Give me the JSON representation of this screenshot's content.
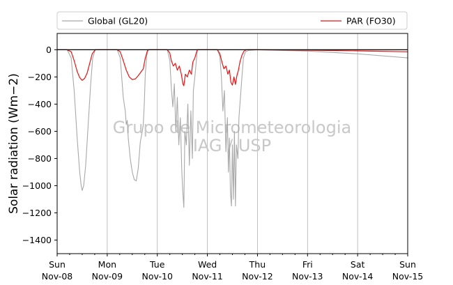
{
  "chart_data": {
    "type": "line",
    "xlabel": "",
    "ylabel": "Solar radiation ($Wm−2$)",
    "ylabel_display": "Solar radiation (Wm−2)",
    "ylim": [
      -1500,
      120
    ],
    "y_ticks": [
      0,
      -200,
      -400,
      -600,
      -800,
      -1000,
      -1200,
      -1400
    ],
    "x_range_days": [
      0,
      7
    ],
    "x_ticks": [
      {
        "day": 0,
        "dow": "Sun",
        "date": "Nov-08"
      },
      {
        "day": 1,
        "dow": "Mon",
        "date": "Nov-09"
      },
      {
        "day": 2,
        "dow": "Tue",
        "date": "Nov-10"
      },
      {
        "day": 3,
        "dow": "Wed",
        "date": "Nov-11"
      },
      {
        "day": 4,
        "dow": "Thu",
        "date": "Nov-12"
      },
      {
        "day": 5,
        "dow": "Fri",
        "date": "Nov-13"
      },
      {
        "day": 6,
        "dow": "Sat",
        "date": "Nov-14"
      },
      {
        "day": 7,
        "dow": "Sun",
        "date": "Nov-15"
      }
    ],
    "grid": "vertical",
    "legend_position": "top, above plot",
    "watermark": [
      "Grupo de Micrometeorologia",
      "IAG / USP"
    ],
    "series": [
      {
        "name": "Global (GL20)",
        "color": "#a8a8a8",
        "points": [
          [
            0.0,
            0
          ],
          [
            0.2,
            0
          ],
          [
            0.28,
            -60
          ],
          [
            0.34,
            -300
          ],
          [
            0.4,
            -650
          ],
          [
            0.45,
            -900
          ],
          [
            0.48,
            -1000
          ],
          [
            0.5,
            -1035
          ],
          [
            0.53,
            -1000
          ],
          [
            0.57,
            -850
          ],
          [
            0.62,
            -550
          ],
          [
            0.67,
            -250
          ],
          [
            0.71,
            -60
          ],
          [
            0.76,
            0
          ],
          [
            1.2,
            0
          ],
          [
            1.26,
            -60
          ],
          [
            1.32,
            -350
          ],
          [
            1.36,
            -450
          ],
          [
            1.38,
            -550
          ],
          [
            1.4,
            -520
          ],
          [
            1.42,
            -650
          ],
          [
            1.46,
            -800
          ],
          [
            1.5,
            -900
          ],
          [
            1.54,
            -955
          ],
          [
            1.58,
            -965
          ],
          [
            1.62,
            -870
          ],
          [
            1.66,
            -680
          ],
          [
            1.7,
            -600
          ],
          [
            1.72,
            -550
          ],
          [
            1.74,
            -400
          ],
          [
            1.76,
            -180
          ],
          [
            1.79,
            -40
          ],
          [
            1.82,
            0
          ],
          [
            2.2,
            0
          ],
          [
            2.25,
            -80
          ],
          [
            2.28,
            -280
          ],
          [
            2.31,
            -420
          ],
          [
            2.34,
            -250
          ],
          [
            2.37,
            -600
          ],
          [
            2.4,
            -350
          ],
          [
            2.43,
            -700
          ],
          [
            2.46,
            -500
          ],
          [
            2.49,
            -900
          ],
          [
            2.51,
            -1050
          ],
          [
            2.53,
            -1160
          ],
          [
            2.55,
            -600
          ],
          [
            2.58,
            -700
          ],
          [
            2.61,
            -400
          ],
          [
            2.64,
            -850
          ],
          [
            2.67,
            -450
          ],
          [
            2.7,
            -800
          ],
          [
            2.72,
            -300
          ],
          [
            2.75,
            -200
          ],
          [
            2.78,
            -80
          ],
          [
            2.8,
            0
          ],
          [
            3.2,
            0
          ],
          [
            3.25,
            -50
          ],
          [
            3.28,
            -200
          ],
          [
            3.31,
            -450
          ],
          [
            3.34,
            -300
          ],
          [
            3.37,
            -750
          ],
          [
            3.4,
            -500
          ],
          [
            3.42,
            -900
          ],
          [
            3.44,
            -650
          ],
          [
            3.46,
            -1050
          ],
          [
            3.48,
            -1150
          ],
          [
            3.5,
            -700
          ],
          [
            3.52,
            -1100
          ],
          [
            3.54,
            -600
          ],
          [
            3.56,
            -1150
          ],
          [
            3.58,
            -700
          ],
          [
            3.61,
            -800
          ],
          [
            3.63,
            -500
          ],
          [
            3.66,
            -350
          ],
          [
            3.69,
            -200
          ],
          [
            3.72,
            -60
          ],
          [
            3.76,
            -15
          ],
          [
            3.82,
            -5
          ],
          [
            4.0,
            0
          ],
          [
            5.0,
            -10
          ],
          [
            6.0,
            -30
          ],
          [
            7.0,
            -60
          ]
        ]
      },
      {
        "name": "PAR (FO30)",
        "color": "#ee1111",
        "points": [
          [
            0.0,
            0
          ],
          [
            0.2,
            0
          ],
          [
            0.28,
            -15
          ],
          [
            0.34,
            -80
          ],
          [
            0.4,
            -160
          ],
          [
            0.45,
            -205
          ],
          [
            0.5,
            -225
          ],
          [
            0.55,
            -210
          ],
          [
            0.6,
            -170
          ],
          [
            0.65,
            -100
          ],
          [
            0.7,
            -30
          ],
          [
            0.76,
            0
          ],
          [
            1.2,
            0
          ],
          [
            1.26,
            -15
          ],
          [
            1.32,
            -80
          ],
          [
            1.38,
            -150
          ],
          [
            1.44,
            -200
          ],
          [
            1.5,
            -220
          ],
          [
            1.56,
            -215
          ],
          [
            1.62,
            -190
          ],
          [
            1.68,
            -160
          ],
          [
            1.72,
            -140
          ],
          [
            1.76,
            -60
          ],
          [
            1.8,
            -10
          ],
          [
            1.82,
            0
          ],
          [
            2.2,
            0
          ],
          [
            2.25,
            -25
          ],
          [
            2.28,
            -80
          ],
          [
            2.32,
            -120
          ],
          [
            2.36,
            -100
          ],
          [
            2.4,
            -150
          ],
          [
            2.44,
            -120
          ],
          [
            2.48,
            -180
          ],
          [
            2.51,
            -250
          ],
          [
            2.53,
            -265
          ],
          [
            2.56,
            -180
          ],
          [
            2.6,
            -200
          ],
          [
            2.64,
            -150
          ],
          [
            2.68,
            -180
          ],
          [
            2.71,
            -90
          ],
          [
            2.75,
            -60
          ],
          [
            2.78,
            -20
          ],
          [
            2.8,
            0
          ],
          [
            3.2,
            0
          ],
          [
            3.25,
            -30
          ],
          [
            3.29,
            -90
          ],
          [
            3.33,
            -140
          ],
          [
            3.37,
            -120
          ],
          [
            3.41,
            -180
          ],
          [
            3.44,
            -150
          ],
          [
            3.47,
            -240
          ],
          [
            3.5,
            -260
          ],
          [
            3.53,
            -200
          ],
          [
            3.56,
            -255
          ],
          [
            3.59,
            -190
          ],
          [
            3.62,
            -150
          ],
          [
            3.65,
            -90
          ],
          [
            3.69,
            -40
          ],
          [
            3.73,
            -10
          ],
          [
            3.78,
            0
          ],
          [
            4.0,
            0
          ],
          [
            5.0,
            -3
          ],
          [
            6.0,
            -8
          ],
          [
            7.0,
            -15
          ]
        ]
      }
    ]
  }
}
